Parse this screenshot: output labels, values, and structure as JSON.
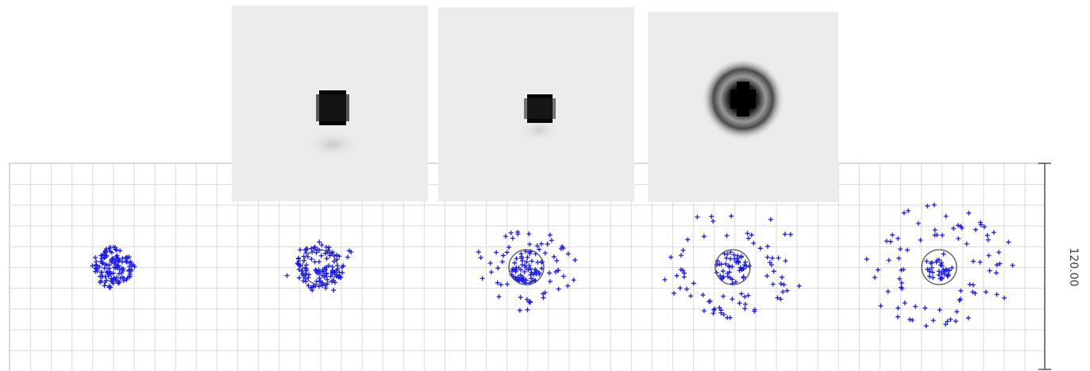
{
  "scale": {
    "label": "120.00"
  },
  "panels": [
    {
      "seed": 11,
      "core_points": 130,
      "halo_points": 0,
      "core_spread": 0.38,
      "halo_spread": 0,
      "circle": false
    },
    {
      "seed": 23,
      "core_points": 110,
      "halo_points": 20,
      "core_spread": 0.42,
      "halo_spread": 0.95,
      "circle": true
    },
    {
      "seed": 37,
      "core_points": 70,
      "halo_points": 55,
      "core_spread": 0.3,
      "halo_spread": 1.35,
      "circle": true
    },
    {
      "seed": 41,
      "core_points": 50,
      "halo_points": 70,
      "core_spread": 0.3,
      "halo_spread": 1.85,
      "circle": true
    },
    {
      "seed": 53,
      "core_points": 35,
      "halo_points": 80,
      "core_spread": 0.26,
      "halo_spread": 2.0,
      "circle": true
    }
  ],
  "colors": {
    "points": "#1a1aff",
    "circle": "#555555",
    "grid": "#d9d9d9",
    "psf_dark": "#050505"
  }
}
